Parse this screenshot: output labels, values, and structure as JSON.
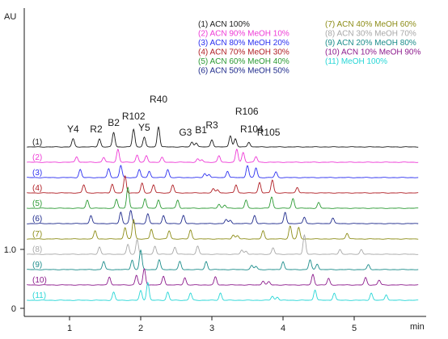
{
  "chart_data": {
    "type": "line",
    "title": "",
    "xlabel": "min",
    "ylabel": "AU",
    "xlim": [
      0.4,
      5.9
    ],
    "x_ticks": [
      1,
      2,
      3,
      4,
      5
    ],
    "y_ticks": [
      {
        "label": "0",
        "value": 0
      },
      {
        "label": "1.0",
        "value": 1.0
      }
    ],
    "grid": false,
    "legend_placement": "top-right",
    "peaks": [
      {
        "label": "Y4",
        "x": 1.05
      },
      {
        "label": "R2",
        "x": 1.42
      },
      {
        "label": "B2",
        "x": 1.62
      },
      {
        "label": "R102",
        "x": 1.9
      },
      {
        "label": "Y5",
        "x": 2.05
      },
      {
        "label": "R40",
        "x": 2.25
      },
      {
        "label": "G3",
        "x": 2.72
      },
      {
        "label": "B1",
        "x": 2.78
      },
      {
        "label": "R3",
        "x": 3.0
      },
      {
        "label": "R106",
        "x": 3.26
      },
      {
        "label": "R104",
        "x": 3.33
      },
      {
        "label": "R105",
        "x": 3.52
      }
    ],
    "series": [
      {
        "tag": "(1)",
        "name": "(1) ACN 100%",
        "color": "#1a1a1a",
        "peaks": [
          [
            1.05,
            10
          ],
          [
            1.42,
            10
          ],
          [
            1.62,
            18
          ],
          [
            1.9,
            22
          ],
          [
            2.05,
            12
          ],
          [
            2.25,
            25
          ],
          [
            2.72,
            6
          ],
          [
            2.78,
            5
          ],
          [
            3.0,
            9
          ],
          [
            3.26,
            14
          ],
          [
            3.33,
            10
          ],
          [
            3.52,
            6
          ]
        ]
      },
      {
        "tag": "(2)",
        "name": "(2) ACN 90% MeOH 10%",
        "color": "#ee3ad6",
        "peaks": [
          [
            1.1,
            7
          ],
          [
            1.48,
            6
          ],
          [
            1.68,
            16
          ],
          [
            1.95,
            9
          ],
          [
            2.08,
            8
          ],
          [
            2.3,
            6
          ],
          [
            2.8,
            4
          ],
          [
            2.86,
            3
          ],
          [
            3.1,
            8
          ],
          [
            3.35,
            16
          ],
          [
            3.44,
            12
          ],
          [
            3.62,
            7
          ]
        ]
      },
      {
        "tag": "(3)",
        "name": "(3) ACN 80% MeOH 20%",
        "color": "#2b2ff0",
        "peaks": [
          [
            1.15,
            10
          ],
          [
            1.55,
            11
          ],
          [
            1.72,
            15
          ],
          [
            1.98,
            10
          ],
          [
            2.12,
            8
          ],
          [
            2.38,
            10
          ],
          [
            2.9,
            5
          ],
          [
            2.96,
            4
          ],
          [
            3.22,
            8
          ],
          [
            3.5,
            15
          ],
          [
            3.62,
            12
          ],
          [
            3.9,
            7
          ]
        ]
      },
      {
        "tag": "(4)",
        "name": "(4) ACN 70% MeOH 30%",
        "color": "#b01e24",
        "peaks": [
          [
            1.2,
            10
          ],
          [
            1.6,
            11
          ],
          [
            1.78,
            21
          ],
          [
            2.02,
            12
          ],
          [
            2.18,
            10
          ],
          [
            2.45,
            10
          ],
          [
            3.02,
            5
          ],
          [
            3.08,
            4
          ],
          [
            3.34,
            10
          ],
          [
            3.67,
            13
          ],
          [
            3.85,
            16
          ],
          [
            4.2,
            7
          ]
        ]
      },
      {
        "tag": "(5)",
        "name": "(5) ACN 60% MeOH 40%",
        "color": "#2b9a33",
        "peaks": [
          [
            1.25,
            10
          ],
          [
            1.66,
            11
          ],
          [
            1.82,
            26
          ],
          [
            2.06,
            12
          ],
          [
            2.25,
            10
          ],
          [
            2.52,
            10
          ],
          [
            3.1,
            5
          ],
          [
            3.18,
            4
          ],
          [
            3.48,
            10
          ],
          [
            3.84,
            14
          ],
          [
            4.14,
            12
          ],
          [
            4.5,
            7
          ]
        ]
      },
      {
        "tag": "(6)",
        "name": "(6) ACN 50% MeOH 50%",
        "color": "#1e2a8c",
        "peaks": [
          [
            1.3,
            10
          ],
          [
            1.72,
            14
          ],
          [
            1.86,
            16
          ],
          [
            2.1,
            12
          ],
          [
            2.32,
            10
          ],
          [
            2.6,
            10
          ],
          [
            3.2,
            5
          ],
          [
            3.26,
            4
          ],
          [
            3.6,
            10
          ],
          [
            4.03,
            14
          ],
          [
            4.3,
            8
          ],
          [
            4.7,
            7
          ]
        ]
      },
      {
        "tag": "(7)",
        "name": "(7) ACN 40% MeOH 60%",
        "color": "#8c8c16",
        "peaks": [
          [
            1.36,
            10
          ],
          [
            1.78,
            14
          ],
          [
            1.9,
            24
          ],
          [
            2.15,
            12
          ],
          [
            2.4,
            10
          ],
          [
            2.7,
            11
          ],
          [
            3.3,
            5
          ],
          [
            3.36,
            4
          ],
          [
            3.72,
            10
          ],
          [
            4.1,
            16
          ],
          [
            4.22,
            14
          ],
          [
            4.9,
            7
          ]
        ]
      },
      {
        "tag": "(8)",
        "name": "(8) ACN 30% MeOH 70%",
        "color": "#a8a8a8",
        "peaks": [
          [
            1.42,
            9
          ],
          [
            1.82,
            12
          ],
          [
            1.95,
            18
          ],
          [
            2.2,
            10
          ],
          [
            2.48,
            9
          ],
          [
            2.8,
            10
          ],
          [
            3.42,
            5
          ],
          [
            3.48,
            4
          ],
          [
            3.86,
            8
          ],
          [
            4.3,
            24
          ],
          [
            4.8,
            6
          ],
          [
            5.1,
            6
          ]
        ]
      },
      {
        "tag": "(9)",
        "name": "(9) ACN 20% MeOH 80%",
        "color": "#1a8c8a",
        "peaks": [
          [
            1.48,
            10
          ],
          [
            1.88,
            12
          ],
          [
            2.0,
            24
          ],
          [
            2.26,
            12
          ],
          [
            2.55,
            10
          ],
          [
            2.92,
            10
          ],
          [
            3.56,
            5
          ],
          [
            3.62,
            4
          ],
          [
            4.0,
            10
          ],
          [
            4.38,
            12
          ],
          [
            4.48,
            7
          ],
          [
            5.2,
            6
          ]
        ]
      },
      {
        "tag": "(10)",
        "name": "(10) ACN 10% MeOH 90%",
        "color": "#8c1a8c",
        "peaks": [
          [
            1.56,
            10
          ],
          [
            1.94,
            12
          ],
          [
            2.05,
            20
          ],
          [
            2.32,
            11
          ],
          [
            2.62,
            9
          ],
          [
            3.05,
            10
          ],
          [
            3.72,
            5
          ],
          [
            3.8,
            4
          ],
          [
            4.42,
            13
          ],
          [
            4.64,
            8
          ],
          [
            5.16,
            9
          ],
          [
            5.35,
            6
          ]
        ]
      },
      {
        "tag": "(11)",
        "name": "(11) MeOH 100%",
        "color": "#26d6d6",
        "peaks": [
          [
            1.62,
            10
          ],
          [
            2.0,
            12
          ],
          [
            2.1,
            22
          ],
          [
            2.38,
            10
          ],
          [
            2.7,
            9
          ],
          [
            3.12,
            9
          ],
          [
            3.85,
            5
          ],
          [
            3.92,
            4
          ],
          [
            4.45,
            13
          ],
          [
            4.72,
            9
          ],
          [
            5.24,
            9
          ],
          [
            5.45,
            7
          ]
        ]
      }
    ]
  }
}
